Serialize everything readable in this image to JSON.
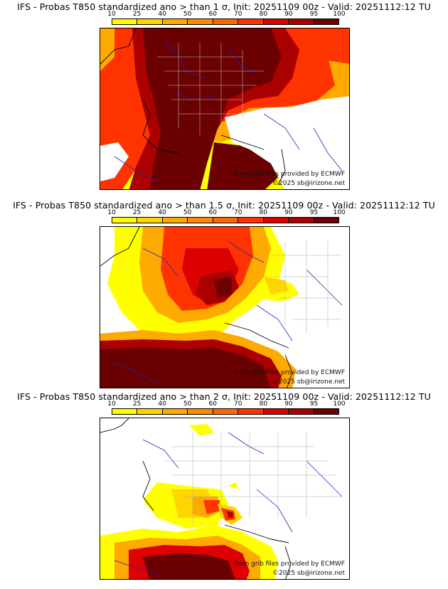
{
  "legend": {
    "ticks": [
      "10",
      "25",
      "40",
      "50",
      "60",
      "70",
      "80",
      "90",
      "95",
      "100"
    ],
    "colors": [
      "#ffff00",
      "#ffd500",
      "#ffaa00",
      "#ff8800",
      "#ff6600",
      "#ff3300",
      "#dd0000",
      "#aa0000",
      "#6a0000"
    ]
  },
  "panels": [
    {
      "title": "IFS - Probas T850  standardized ano > than 1 σ, Init: 20251109 00z - Valid: 20251112:12 TU",
      "credit_source": "from grib files provided by ECMWF",
      "credit_copyright": "©2025 sb@irizone.net"
    },
    {
      "title": "IFS - Probas T850  standardized ano > than 1.5 σ, Init: 20251109 00z - Valid: 20251112:12 TU",
      "credit_source": "from grib files provided by ECMWF",
      "credit_copyright": "©2025 sb@irizone.net"
    },
    {
      "title": "IFS - Probas T850  standardized ano > than 2 σ, Init: 20251109 00z - Valid: 20251112:12 TU",
      "credit_source": "from grib files provided by ECMWF",
      "credit_copyright": "©2025 sb@irizone.net"
    }
  ]
}
